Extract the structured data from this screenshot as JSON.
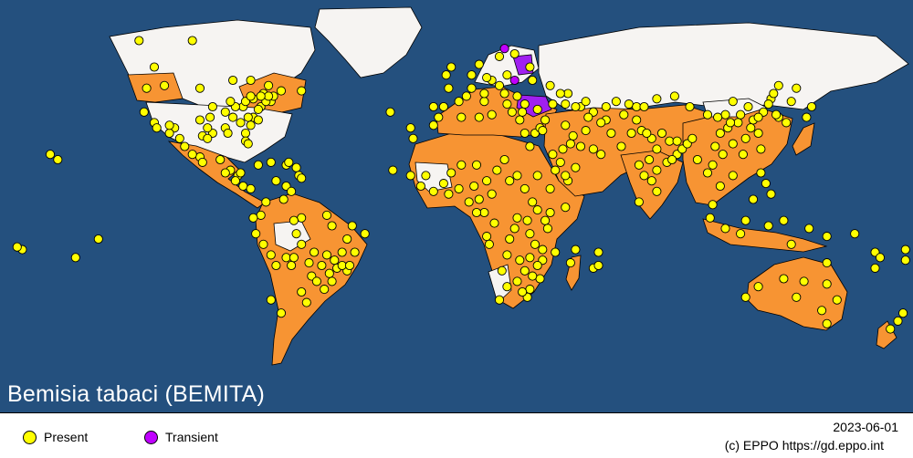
{
  "map": {
    "title": "Bemisia tabaci (BEMITA)",
    "colors": {
      "ocean": "#24507e",
      "land": "#f6f4f2",
      "present_region": "#f79433",
      "transient_region": "#a020f0",
      "present_dot": "#ffff00",
      "transient_dot": "#c000ff",
      "border": "#000000"
    },
    "present_points": [
      [
        -124,
        65
      ],
      [
        -103,
        65
      ],
      [
        -118,
        55
      ],
      [
        -80,
        50
      ],
      [
        -87,
        50
      ],
      [
        -73,
        48
      ],
      [
        -75,
        45
      ],
      [
        -95,
        40
      ],
      [
        -100,
        35
      ],
      [
        -90,
        32
      ],
      [
        -82,
        30
      ],
      [
        -95,
        30
      ],
      [
        -82,
        27
      ],
      [
        -110,
        32
      ],
      [
        -112,
        30
      ],
      [
        -106,
        25
      ],
      [
        -100,
        21
      ],
      [
        -92,
        20
      ],
      [
        -88,
        16
      ],
      [
        -85,
        14
      ],
      [
        -83,
        10
      ],
      [
        -80,
        9
      ],
      [
        -77,
        18
      ],
      [
        -72,
        19
      ],
      [
        -66,
        18
      ],
      [
        -62,
        17
      ],
      [
        -61,
        14
      ],
      [
        -70,
        12
      ],
      [
        -66,
        10
      ],
      [
        -74,
        4
      ],
      [
        -76,
        -1
      ],
      [
        -78,
        -8
      ],
      [
        -60,
        -2
      ],
      [
        -50,
        -1
      ],
      [
        -48,
        -5
      ],
      [
        -40,
        -5
      ],
      [
        -42,
        -10
      ],
      [
        -44,
        -15
      ],
      [
        -47,
        -18
      ],
      [
        -52,
        -20
      ],
      [
        -56,
        -24
      ],
      [
        -60,
        -30
      ],
      [
        -64,
        -20
      ],
      [
        -70,
        -20
      ],
      [
        -72,
        -33
      ],
      [
        -68,
        -38
      ],
      [
        -58,
        -34
      ],
      [
        -48,
        -26
      ],
      [
        -42,
        -22
      ],
      [
        -39,
        -15
      ],
      [
        -35,
        -8
      ],
      [
        -156,
        20
      ],
      [
        -159,
        22
      ],
      [
        -149,
        -17
      ],
      [
        -140,
        -10
      ],
      [
        -170,
        -14
      ],
      [
        -172,
        -13
      ],
      [
        -25,
        38
      ],
      [
        -17,
        32
      ],
      [
        -16,
        28
      ],
      [
        -24,
        16
      ],
      [
        -17,
        14
      ],
      [
        -13,
        10
      ],
      [
        -8,
        8
      ],
      [
        -2,
        7
      ],
      [
        2,
        9
      ],
      [
        8,
        10
      ],
      [
        13,
        12
      ],
      [
        15,
        7
      ],
      [
        10,
        5
      ],
      [
        12,
        0
      ],
      [
        16,
        -4
      ],
      [
        25,
        -2
      ],
      [
        22,
        -10
      ],
      [
        30,
        -8
      ],
      [
        35,
        -14
      ],
      [
        30,
        -17
      ],
      [
        28,
        -22
      ],
      [
        25,
        -26
      ],
      [
        30,
        -29
      ],
      [
        18,
        -33
      ],
      [
        34,
        -25
      ],
      [
        40,
        -15
      ],
      [
        37,
        -6
      ],
      [
        38,
        0
      ],
      [
        44,
        2
      ],
      [
        38,
        9
      ],
      [
        45,
        12
      ],
      [
        33,
        14
      ],
      [
        25,
        14
      ],
      [
        20,
        20
      ],
      [
        30,
        25
      ],
      [
        32,
        30
      ],
      [
        28,
        30
      ],
      [
        36,
        35
      ],
      [
        44,
        33
      ],
      [
        47,
        29
      ],
      [
        50,
        25
      ],
      [
        55,
        24
      ],
      [
        58,
        22
      ],
      [
        48,
        17
      ],
      [
        44,
        14
      ],
      [
        -8,
        33
      ],
      [
        -6,
        36
      ],
      [
        3,
        36
      ],
      [
        10,
        36
      ],
      [
        15,
        37
      ],
      [
        23,
        38
      ],
      [
        26,
        35
      ],
      [
        12,
        42
      ],
      [
        2,
        42
      ],
      [
        -4,
        40
      ],
      [
        -8,
        40
      ],
      [
        5,
        44
      ],
      [
        12,
        45
      ],
      [
        20,
        45
      ],
      [
        25,
        44
      ],
      [
        28,
        41
      ],
      [
        33,
        39
      ],
      [
        39,
        41
      ],
      [
        44,
        41
      ],
      [
        50,
        40
      ],
      [
        55,
        38
      ],
      [
        60,
        40
      ],
      [
        67,
        37
      ],
      [
        72,
        35
      ],
      [
        74,
        31
      ],
      [
        78,
        28
      ],
      [
        80,
        24
      ],
      [
        85,
        27
      ],
      [
        88,
        22
      ],
      [
        77,
        20
      ],
      [
        73,
        18
      ],
      [
        75,
        14
      ],
      [
        78,
        12
      ],
      [
        80,
        8
      ],
      [
        90,
        24
      ],
      [
        96,
        20
      ],
      [
        100,
        15
      ],
      [
        102,
        18
      ],
      [
        106,
        22
      ],
      [
        105,
        10
      ],
      [
        110,
        14
      ],
      [
        114,
        22
      ],
      [
        110,
        26
      ],
      [
        115,
        28
      ],
      [
        120,
        30
      ],
      [
        118,
        35
      ],
      [
        112,
        34
      ],
      [
        105,
        30
      ],
      [
        103,
        25
      ],
      [
        108,
        32
      ],
      [
        116,
        40
      ],
      [
        122,
        38
      ],
      [
        125,
        43
      ],
      [
        128,
        36
      ],
      [
        127,
        37
      ],
      [
        131,
        34
      ],
      [
        139,
        36
      ],
      [
        141,
        40
      ],
      [
        133,
        42
      ],
      [
        121,
        24
      ],
      [
        121,
        15
      ],
      [
        123,
        11
      ],
      [
        125,
        7
      ],
      [
        118,
        5
      ],
      [
        102,
        3
      ],
      [
        101,
        -2
      ],
      [
        107,
        -6
      ],
      [
        113,
        -8
      ],
      [
        115,
        -3
      ],
      [
        124,
        -5
      ],
      [
        130,
        -3
      ],
      [
        140,
        -6
      ],
      [
        147,
        -9
      ],
      [
        158,
        -8
      ],
      [
        166,
        -15
      ],
      [
        178,
        -18
      ],
      [
        166,
        -21
      ],
      [
        178,
        -14
      ],
      [
        177,
        -38
      ],
      [
        175,
        -41
      ],
      [
        172,
        -44
      ],
      [
        168,
        -17
      ],
      [
        147,
        -19
      ],
      [
        133,
        -12
      ],
      [
        120,
        -28
      ],
      [
        130,
        -25
      ],
      [
        135,
        -32
      ],
      [
        138,
        -26
      ],
      [
        147,
        -27
      ],
      [
        151,
        -33
      ],
      [
        145,
        -37
      ],
      [
        147,
        -42
      ],
      [
        115,
        -32
      ],
      [
        55,
        -21
      ],
      [
        57,
        -20
      ],
      [
        57,
        -15
      ],
      [
        46,
        -19
      ],
      [
        48,
        -14
      ],
      [
        73,
        4
      ],
      [
        -3,
        52
      ],
      [
        -1,
        55
      ],
      [
        7,
        52
      ],
      [
        10,
        56
      ],
      [
        18,
        59
      ],
      [
        24,
        60
      ],
      [
        15,
        50
      ],
      [
        21,
        52
      ],
      [
        31,
        50
      ],
      [
        30,
        55
      ],
      [
        38,
        48
      ],
      [
        45,
        45
      ],
      [
        52,
        42
      ],
      [
        48,
        40
      ],
      [
        42,
        45
      ],
      [
        -118,
        34
      ],
      [
        -122,
        38
      ],
      [
        -114,
        48
      ],
      [
        -97,
        32
      ],
      [
        -96,
        36
      ],
      [
        -90,
        38
      ],
      [
        -84,
        34
      ],
      [
        -87,
        36
      ],
      [
        -79,
        36
      ],
      [
        -76,
        40
      ],
      [
        -77,
        39
      ],
      [
        -72,
        42
      ],
      [
        -71,
        44
      ],
      [
        -68,
        46
      ],
      [
        -60,
        46
      ],
      [
        -65,
        19
      ],
      [
        -2,
        47
      ],
      [
        7,
        47
      ],
      [
        13,
        51
      ],
      [
        18,
        48
      ],
      [
        21,
        41
      ],
      [
        27,
        38
      ],
      [
        34,
        32
      ],
      [
        35,
        31
      ],
      [
        39,
        22
      ],
      [
        42,
        19
      ],
      [
        53,
        36
      ],
      [
        60,
        35
      ],
      [
        64,
        42
      ],
      [
        69,
        41
      ],
      [
        72,
        40
      ],
      [
        75,
        40
      ],
      [
        80,
        43
      ],
      [
        87,
        44
      ],
      [
        93,
        40
      ],
      [
        100,
        37
      ],
      [
        107,
        37
      ],
      [
        110,
        42
      ],
      [
        104,
        36
      ],
      [
        109,
        34
      ],
      [
        113,
        37
      ],
      [
        117,
        32
      ],
      [
        120,
        36
      ],
      [
        124,
        41
      ],
      [
        126,
        45
      ],
      [
        128,
        48
      ],
      [
        135,
        47
      ],
      [
        80,
        16
      ],
      [
        84,
        19
      ],
      [
        86,
        20
      ],
      [
        92,
        26
      ],
      [
        94,
        28
      ],
      [
        88,
        27
      ],
      [
        82,
        30
      ],
      [
        76,
        30
      ],
      [
        70,
        30
      ],
      [
        66,
        25
      ],
      [
        62,
        30
      ],
      [
        58,
        34
      ],
      [
        52,
        31
      ],
      [
        46,
        26
      ],
      [
        43,
        24
      ],
      [
        40,
        16
      ],
      [
        6,
        4
      ],
      [
        -4,
        11
      ],
      [
        -11,
        14
      ],
      [
        -1,
        15
      ],
      [
        3,
        18
      ],
      [
        9,
        18
      ],
      [
        17,
        16
      ],
      [
        22,
        12
      ],
      [
        28,
        9
      ],
      [
        31,
        4
      ],
      [
        33,
        1
      ],
      [
        36,
        -3
      ],
      [
        29,
        -3
      ],
      [
        24,
        -6
      ],
      [
        21,
        -16
      ],
      [
        26,
        -18
      ],
      [
        32,
        -12
      ],
      [
        35,
        -18
      ],
      [
        33,
        -20
      ],
      [
        31,
        -24
      ],
      [
        29,
        -32
      ],
      [
        27,
        -30
      ],
      [
        21,
        -28
      ],
      [
        19,
        -22
      ],
      [
        14,
        -12
      ],
      [
        13,
        -9
      ],
      [
        9,
        0
      ],
      [
        -79,
        -2
      ],
      [
        -75,
        -12
      ],
      [
        -72,
        -16
      ],
      [
        -66,
        -17
      ],
      [
        -63,
        -17
      ],
      [
        -57,
        -19
      ],
      [
        -54,
        -26
      ],
      [
        -51,
        -29
      ],
      [
        -49,
        -23
      ],
      [
        -46,
        -21
      ],
      [
        -44,
        -20
      ],
      [
        -41,
        -20
      ],
      [
        -50,
        -16
      ],
      [
        -55,
        -15
      ],
      [
        -60,
        -12
      ],
      [
        -62,
        -8
      ],
      [
        -63,
        -3
      ],
      [
        -67,
        5
      ],
      [
        -64,
        8
      ],
      [
        -60,
        13
      ],
      [
        -86,
        12
      ],
      [
        -84,
        15
      ],
      [
        -90,
        15
      ],
      [
        -99,
        19
      ],
      [
        -103,
        22
      ],
      [
        -108,
        28
      ],
      [
        -117,
        32
      ],
      [
        -112,
        33
      ],
      [
        -99,
        29
      ],
      [
        -97,
        28
      ],
      [
        -89,
        30
      ],
      [
        -81,
        26
      ],
      [
        -80,
        33
      ],
      [
        -77,
        35
      ],
      [
        -81,
        36
      ],
      [
        -83,
        40
      ],
      [
        -86,
        40
      ],
      [
        -88,
        42
      ],
      [
        -82,
        42
      ],
      [
        -79,
        43
      ],
      [
        -74,
        42
      ],
      [
        -73,
        44
      ],
      [
        -76,
        44
      ],
      [
        -80,
        44
      ],
      [
        -121,
        47
      ],
      [
        -100,
        47
      ]
    ],
    "transient_points": [
      [
        20,
        62
      ],
      [
        24,
        50
      ]
    ]
  },
  "legend": {
    "items": [
      {
        "label": "Present",
        "color": "#ffff00"
      },
      {
        "label": "Transient",
        "color": "#c000ff"
      }
    ]
  },
  "footer": {
    "date": "2023-06-01",
    "credit": "(c) EPPO https://gd.eppo.int"
  }
}
